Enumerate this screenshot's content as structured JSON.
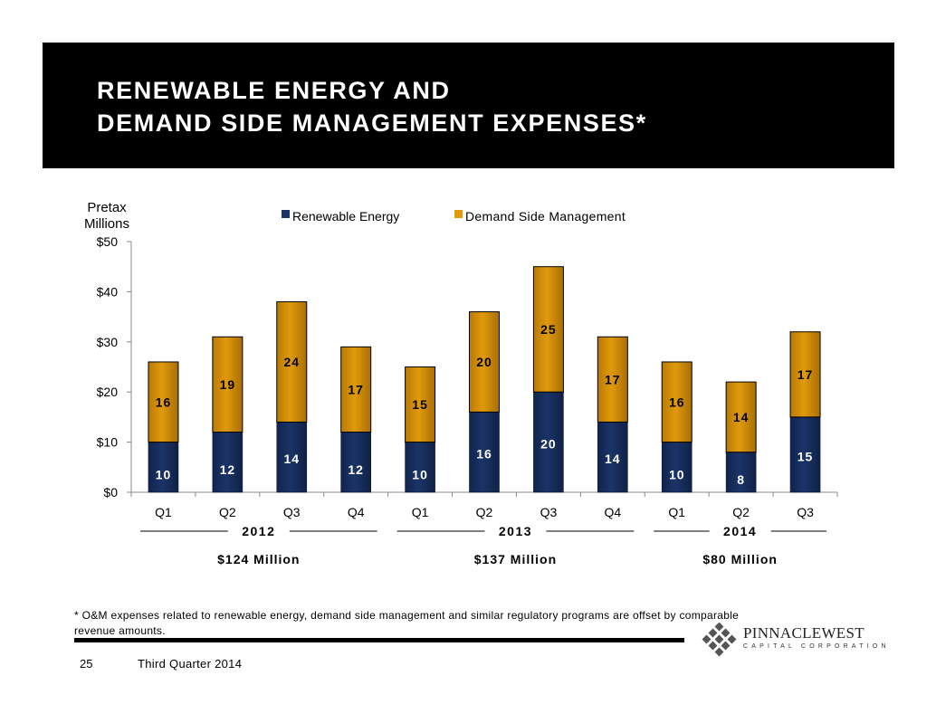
{
  "title": {
    "line1": "RENEWABLE ENERGY AND",
    "line2": "DEMAND SIDE MANAGEMENT EXPENSES*"
  },
  "colors": {
    "renewable": "#1b3468",
    "dsm": "#e09a0b",
    "title_bg": "#000000"
  },
  "chart_data": {
    "type": "bar",
    "stacked": true,
    "ylabel": "Pretax Millions",
    "ylim": [
      0,
      50
    ],
    "yticks": [
      0,
      10,
      20,
      30,
      40,
      50
    ],
    "ytick_labels": [
      "$0",
      "$10",
      "$20",
      "$30",
      "$40",
      "$50"
    ],
    "categories": [
      "Q1",
      "Q2",
      "Q3",
      "Q4",
      "Q1",
      "Q2",
      "Q3",
      "Q4",
      "Q1",
      "Q2",
      "Q3"
    ],
    "series": [
      {
        "name": "Renewable Energy",
        "values": [
          10,
          12,
          14,
          12,
          10,
          16,
          20,
          14,
          10,
          8,
          15
        ]
      },
      {
        "name": "Demand Side Management",
        "values": [
          16,
          19,
          24,
          17,
          15,
          20,
          25,
          17,
          16,
          14,
          17
        ]
      }
    ],
    "legend": [
      "Renewable Energy",
      "Demand Side Management"
    ],
    "legend_position": "top",
    "groups": [
      {
        "label": "2012",
        "total": "$124 Million",
        "start": 0,
        "end": 3
      },
      {
        "label": "2013",
        "total": "$137 Million",
        "start": 4,
        "end": 7
      },
      {
        "label": "2014",
        "total": "$80 Million",
        "start": 8,
        "end": 10
      }
    ]
  },
  "footnote": "* O&M expenses related to renewable energy, demand side management and similar regulatory programs are offset by comparable revenue amounts.",
  "footer": {
    "page_number": "25",
    "text": "Third Quarter 2014"
  },
  "logo": {
    "name": "PINNACLEWEST",
    "sub": "CAPITAL CORPORATION"
  }
}
